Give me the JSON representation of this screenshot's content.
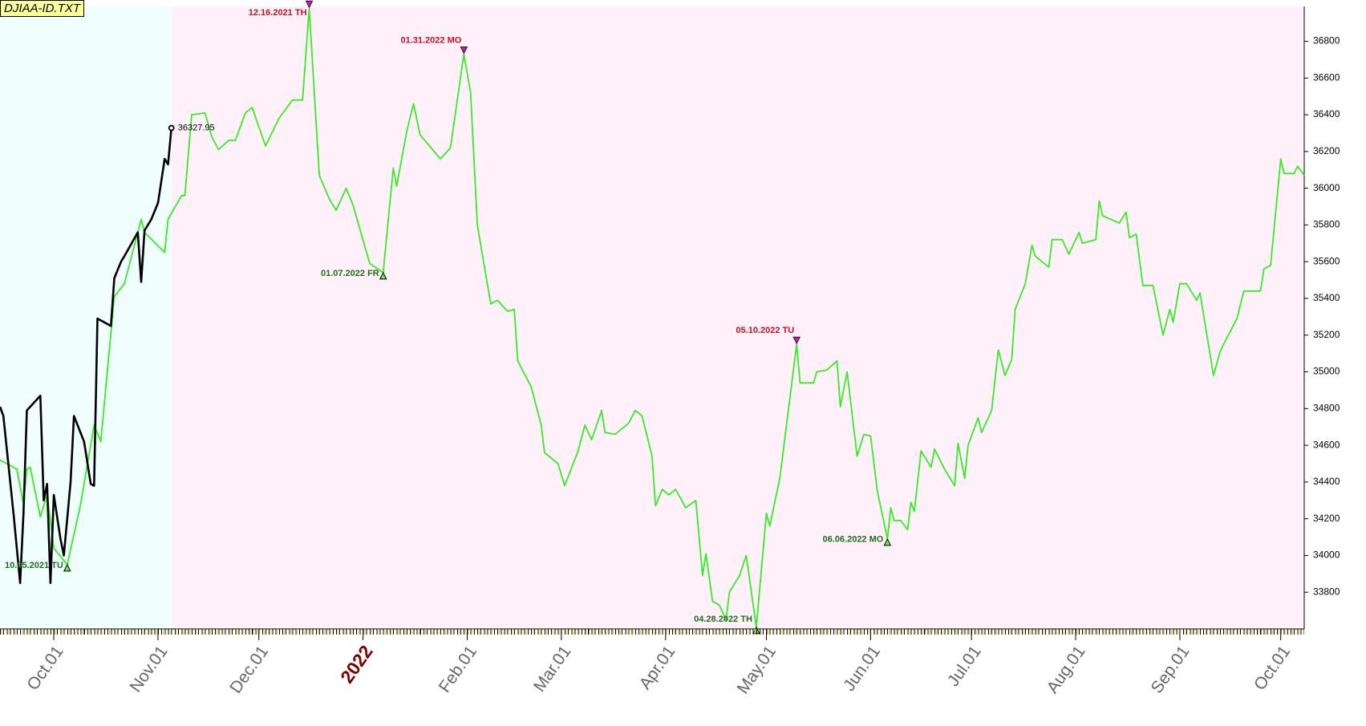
{
  "chart_data": {
    "type": "line",
    "title": "DJIAA-ID.TXT",
    "xlim": [
      "2021-09-15",
      "2022-10-08"
    ],
    "ylim": [
      33600,
      36990
    ],
    "yticks": [
      33800,
      34000,
      34200,
      34400,
      34600,
      34800,
      35000,
      35200,
      35400,
      35600,
      35800,
      36000,
      36200,
      36400,
      36600,
      36800
    ],
    "xticks": [
      {
        "value": "2021-10-01",
        "label": "Oct.01"
      },
      {
        "value": "2021-11-01",
        "label": "Nov.01"
      },
      {
        "value": "2021-12-01",
        "label": "Dec.01"
      },
      {
        "value": "2022-01-01",
        "label": "2022"
      },
      {
        "value": "2022-02-01",
        "label": "Feb.01"
      },
      {
        "value": "2022-03-01",
        "label": "Mar.01"
      },
      {
        "value": "2022-04-01",
        "label": "Apr.01"
      },
      {
        "value": "2022-05-01",
        "label": "May.01"
      },
      {
        "value": "2022-06-01",
        "label": "Jun.01"
      },
      {
        "value": "2022-07-01",
        "label": "Jul.01"
      },
      {
        "value": "2022-08-01",
        "label": "Aug.01"
      },
      {
        "value": "2022-09-01",
        "label": "Sep.01"
      },
      {
        "value": "2022-10-01",
        "label": "Oct.01"
      }
    ],
    "series": [
      {
        "color": "#33ee22",
        "x": [
          "2021-09-15",
          "2021-09-20",
          "2021-09-22",
          "2021-09-23",
          "2021-09-24",
          "2021-09-27",
          "2021-09-29",
          "2021-10-01",
          "2021-10-05",
          "2021-10-09",
          "2021-10-13",
          "2021-10-15",
          "2021-10-19",
          "2021-10-22",
          "2021-10-27",
          "2021-10-28",
          "2021-11-03",
          "2021-11-04",
          "2021-11-08",
          "2021-11-09",
          "2021-11-11",
          "2021-11-15",
          "2021-11-17",
          "2021-11-19",
          "2021-11-22",
          "2021-11-24",
          "2021-11-27",
          "2021-11-29",
          "2021-12-03",
          "2021-12-07",
          "2021-12-11",
          "2021-12-14",
          "2021-12-16",
          "2021-12-19",
          "2021-12-22",
          "2021-12-24",
          "2021-12-27",
          "2021-12-29",
          "2022-01-03",
          "2022-01-07",
          "2022-01-10",
          "2022-01-11",
          "2022-01-14",
          "2022-01-16",
          "2022-01-18",
          "2022-01-24",
          "2022-01-27",
          "2022-01-31",
          "2022-02-02",
          "2022-02-04",
          "2022-02-08",
          "2022-02-10",
          "2022-02-13",
          "2022-02-15",
          "2022-02-16",
          "2022-02-20",
          "2022-02-23",
          "2022-02-24",
          "2022-02-28",
          "2022-03-02",
          "2022-03-06",
          "2022-03-08",
          "2022-03-10",
          "2022-03-13",
          "2022-03-14",
          "2022-03-17",
          "2022-03-21",
          "2022-03-23",
          "2022-03-25",
          "2022-03-28",
          "2022-03-29",
          "2022-03-31",
          "2022-04-02",
          "2022-04-04",
          "2022-04-07",
          "2022-04-10",
          "2022-04-12",
          "2022-04-13",
          "2022-04-15",
          "2022-04-17",
          "2022-04-19",
          "2022-04-20",
          "2022-04-23",
          "2022-04-25",
          "2022-04-28",
          "2022-05-01",
          "2022-05-02",
          "2022-05-05",
          "2022-05-10",
          "2022-05-11",
          "2022-05-15",
          "2022-05-16",
          "2022-05-19",
          "2022-05-22",
          "2022-05-23",
          "2022-05-25",
          "2022-05-28",
          "2022-05-30",
          "2022-06-01",
          "2022-06-03",
          "2022-06-06",
          "2022-06-07",
          "2022-06-08",
          "2022-06-10",
          "2022-06-12",
          "2022-06-13",
          "2022-06-14",
          "2022-06-16",
          "2022-06-19",
          "2022-06-20",
          "2022-06-23",
          "2022-06-26",
          "2022-06-27",
          "2022-06-29",
          "2022-06-30",
          "2022-07-03",
          "2022-07-04",
          "2022-07-07",
          "2022-07-09",
          "2022-07-11",
          "2022-07-13",
          "2022-07-14",
          "2022-07-17",
          "2022-07-19",
          "2022-07-20",
          "2022-07-24",
          "2022-07-25",
          "2022-07-28",
          "2022-07-30",
          "2022-08-02",
          "2022-08-03",
          "2022-08-07",
          "2022-08-08",
          "2022-08-09",
          "2022-08-14",
          "2022-08-16",
          "2022-08-17",
          "2022-08-19",
          "2022-08-21",
          "2022-08-24",
          "2022-08-27",
          "2022-08-29",
          "2022-08-30",
          "2022-09-01",
          "2022-09-03",
          "2022-09-06",
          "2022-09-07",
          "2022-09-11",
          "2022-09-13",
          "2022-09-14",
          "2022-09-18",
          "2022-09-20",
          "2022-09-25",
          "2022-09-26",
          "2022-09-28",
          "2022-10-01",
          "2022-10-02",
          "2022-10-05",
          "2022-10-06",
          "2022-10-08"
        ],
        "values": [
          34520,
          34470,
          34280,
          34470,
          34480,
          34210,
          34330,
          34040,
          33950,
          34280,
          34710,
          34620,
          35410,
          35480,
          35830,
          35760,
          35650,
          35830,
          35960,
          35960,
          36400,
          36410,
          36280,
          36210,
          36260,
          36260,
          36410,
          36440,
          36230,
          36380,
          36480,
          36480,
          36980,
          36070,
          35940,
          35880,
          36000,
          35910,
          35590,
          35540,
          36110,
          36010,
          36310,
          36460,
          36290,
          36160,
          36220,
          36730,
          36520,
          35800,
          35370,
          35390,
          35330,
          35340,
          35060,
          34920,
          34710,
          34560,
          34500,
          34380,
          34570,
          34710,
          34630,
          34790,
          34670,
          34660,
          34720,
          34790,
          34760,
          34540,
          34270,
          34360,
          34330,
          34360,
          34260,
          34300,
          33890,
          34010,
          33750,
          33730,
          33650,
          33800,
          33890,
          34000,
          33610,
          34230,
          34160,
          34420,
          35150,
          34940,
          34940,
          35000,
          35010,
          35060,
          34810,
          35000,
          34540,
          34660,
          34650,
          34350,
          34090,
          34260,
          34190,
          34190,
          34140,
          34290,
          34240,
          34570,
          34480,
          34580,
          34470,
          34380,
          34610,
          34420,
          34600,
          34750,
          34670,
          34790,
          35120,
          34980,
          35070,
          35340,
          35480,
          35690,
          35630,
          35570,
          35720,
          35720,
          35640,
          35760,
          35700,
          35720,
          35930,
          35850,
          35810,
          35870,
          35730,
          35750,
          35470,
          35470,
          35200,
          35340,
          35270,
          35480,
          35480,
          35390,
          35430,
          34980,
          35110,
          35150,
          35290,
          35440,
          35440,
          35560,
          35580,
          36160,
          36080,
          36080,
          36120,
          36070
        ]
      },
      {
        "color": "#000000",
        "x": [
          "2021-09-15",
          "2021-09-16",
          "2021-09-19",
          "2021-09-21",
          "2021-09-22",
          "2021-09-23",
          "2021-09-27",
          "2021-09-28",
          "2021-09-29",
          "2021-09-30",
          "2021-10-01",
          "2021-10-03",
          "2021-10-04",
          "2021-10-06",
          "2021-10-07",
          "2021-10-10",
          "2021-10-12",
          "2021-10-13",
          "2021-10-14",
          "2021-10-18",
          "2021-10-19",
          "2021-10-21",
          "2021-10-22",
          "2021-10-26",
          "2021-10-27",
          "2021-10-28",
          "2021-10-30",
          "2021-11-01",
          "2021-11-03",
          "2021-11-04",
          "2021-11-05"
        ],
        "values": [
          34810,
          34760,
          34230,
          33850,
          34230,
          34790,
          34870,
          34300,
          34390,
          33850,
          34330,
          34090,
          34000,
          34400,
          34760,
          34620,
          34390,
          34380,
          35290,
          35250,
          35510,
          35600,
          35630,
          35760,
          35490,
          35770,
          35830,
          35920,
          36160,
          36130,
          36327.95
        ],
        "value_labels": [
          null,
          null,
          null,
          null,
          null,
          null,
          null,
          null,
          null,
          null,
          null,
          null,
          null,
          null,
          null,
          null,
          null,
          null,
          null,
          null,
          null,
          null,
          null,
          null,
          null,
          null,
          null,
          null,
          null,
          null,
          "36327.95"
        ]
      }
    ],
    "annotations": [
      {
        "text": "10.05.2021 TU",
        "x": "2021-10-05",
        "y": 33950,
        "type": "low"
      },
      {
        "text": "12.16.2021 TH",
        "x": "2021-12-16",
        "y": 36980,
        "type": "high"
      },
      {
        "text": "01.07.2022 FR",
        "x": "2022-01-07",
        "y": 35540,
        "type": "low"
      },
      {
        "text": "01.31.2022 MO",
        "x": "2022-01-31",
        "y": 36730,
        "type": "high"
      },
      {
        "text": "04.28.2022 TH",
        "x": "2022-04-28",
        "y": 33610,
        "type": "low"
      },
      {
        "text": "05.10.2022 TU",
        "x": "2022-05-10",
        "y": 35150,
        "type": "high"
      },
      {
        "text": "06.06.2022 MO",
        "x": "2022-06-06",
        "y": 34090,
        "type": "low"
      }
    ]
  }
}
